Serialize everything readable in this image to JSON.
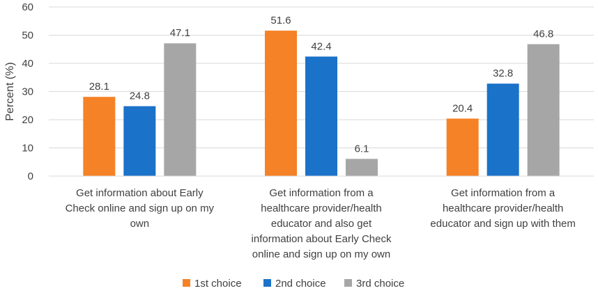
{
  "chart_data": {
    "type": "bar",
    "ylabel": "Percent (%)",
    "ylim": [
      0,
      60
    ],
    "yticks": [
      0,
      10,
      20,
      30,
      40,
      50,
      60
    ],
    "grid": true,
    "legend_position": "bottom",
    "categories": [
      [
        "Get information about Early",
        "Check online and sign up on my",
        "own"
      ],
      [
        "Get information from a",
        "healthcare provider/health",
        "educator and also get",
        "information about Early Check",
        "online and sign up on my own"
      ],
      [
        "Get information from a",
        "healthcare provider/health",
        "educator and sign up with them"
      ]
    ],
    "series": [
      {
        "name": "1st choice",
        "color": "#F58226",
        "values": [
          28.1,
          51.6,
          20.4
        ]
      },
      {
        "name": "2nd choice",
        "color": "#1B72C9",
        "values": [
          24.8,
          42.4,
          32.8
        ]
      },
      {
        "name": "3rd choice",
        "color": "#A6A6A6",
        "values": [
          47.1,
          6.1,
          46.8
        ]
      }
    ]
  }
}
